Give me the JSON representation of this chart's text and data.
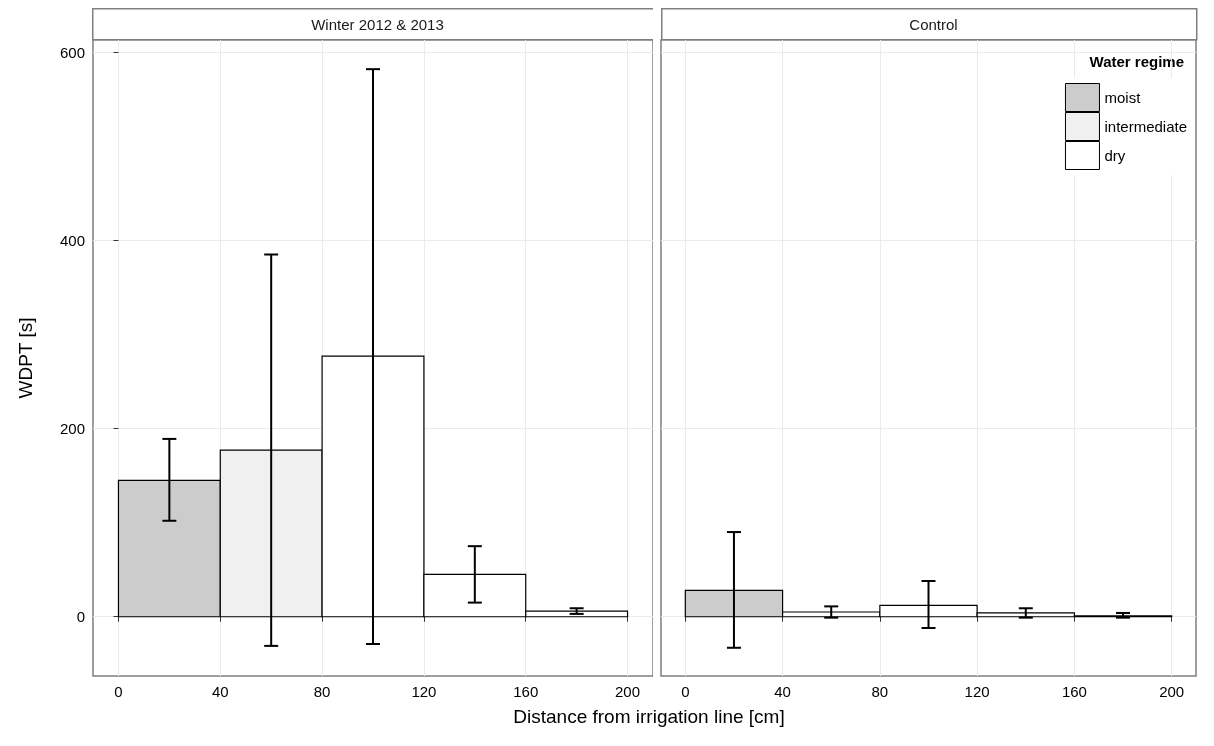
{
  "chart_data": [
    {
      "type": "bar",
      "title": "Winter 2012 & 2013",
      "ylabel": "WDPT [s]",
      "xlabel": "Distance from irrigation line [cm]",
      "xlim": [
        -10,
        210
      ],
      "xticks": [
        0,
        40,
        80,
        120,
        160,
        200
      ],
      "ylim": [
        -63,
        613
      ],
      "yticks": [
        0,
        200,
        400,
        600
      ],
      "grid": true,
      "legend": false,
      "series": [
        {
          "color": "#cccccc",
          "x": [
            20
          ],
          "values": [
            145
          ],
          "errors": [
            [
              102,
              189
            ]
          ]
        },
        {
          "color": "#f0f0f0",
          "x": [
            60
          ],
          "values": [
            177
          ],
          "errors": [
            [
              -31,
              385
            ]
          ]
        },
        {
          "color": "#ffffff",
          "x": [
            100,
            140,
            180
          ],
          "values": [
            277,
            45,
            6
          ],
          "errors": [
            [
              -29,
              582
            ],
            [
              15,
              75
            ],
            [
              3,
              9
            ]
          ]
        }
      ]
    },
    {
      "type": "bar",
      "title": "Control",
      "xlim": [
        -10,
        210
      ],
      "xticks": [
        0,
        40,
        80,
        120,
        160,
        200
      ],
      "ylim": [
        -63,
        613
      ],
      "yticks": [
        0,
        200,
        400,
        600
      ],
      "grid": true,
      "legend": "top right",
      "legend_title": "Water regime",
      "tick_labels": "x",
      "series": [
        {
          "name": "moist",
          "color": "#cccccc",
          "x": [
            20
          ],
          "values": [
            28
          ],
          "errors": [
            [
              -33,
              90
            ]
          ]
        },
        {
          "name": "intermediate",
          "color": "#f0f0f0"
        },
        {
          "name": "dry",
          "color": "#ffffff",
          "x": [
            60,
            100,
            140,
            180
          ],
          "values": [
            5,
            12,
            4,
            1
          ],
          "errors": [
            [
              -1,
              11
            ],
            [
              -12,
              38
            ],
            [
              -1,
              9
            ],
            [
              -1,
              4
            ]
          ]
        }
      ]
    }
  ]
}
